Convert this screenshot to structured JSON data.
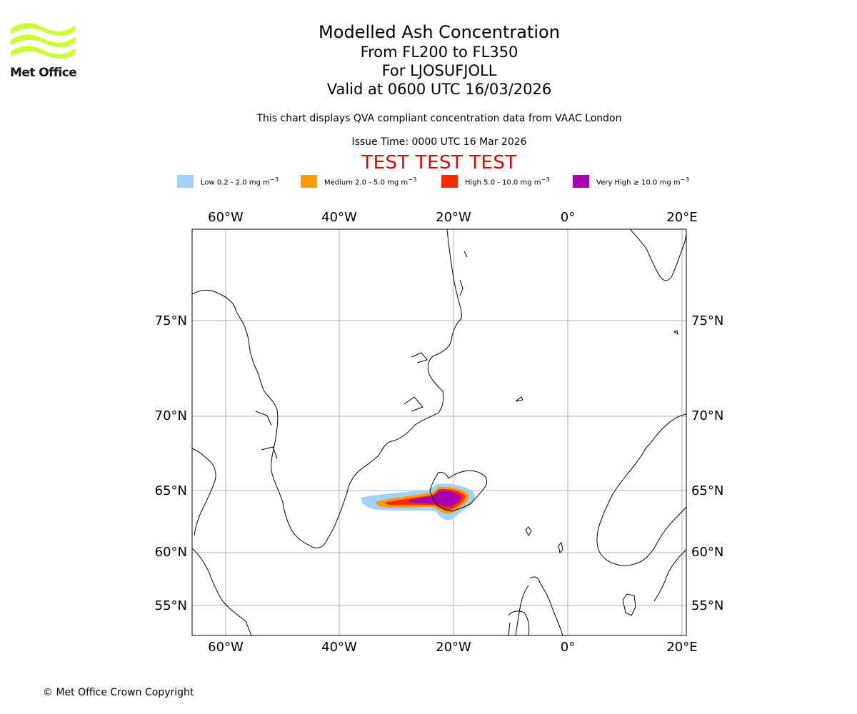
{
  "logo": {
    "name": "Met Office",
    "wave_color": "#ccff33"
  },
  "title": {
    "main": "Modelled Ash Concentration",
    "levels": "From FL200 to FL350",
    "volcano": "For LJOSUFJOLL",
    "valid": "Valid at 0600 UTC 16/03/2026"
  },
  "disclaimer": "This chart displays QVA compliant concentration data from VAAC London",
  "issue_time": "Issue Time: 0000 UTC 16 Mar 2026",
  "test_banner": "TEST TEST TEST",
  "legend": [
    {
      "label": "Low 0.2 - 2.0 mg m",
      "sup": "−3",
      "color": "#a0d2fa"
    },
    {
      "label": "Medium 2.0 - 5.0 mg m",
      "sup": "−3",
      "color": "#ff9a00"
    },
    {
      "label": "High 5.0 - 10.0 mg m",
      "sup": "−3",
      "color": "#ff2a00"
    },
    {
      "label": "Very High ≥ 10.0 mg m",
      "sup": "−3",
      "color": "#a800b0"
    }
  ],
  "map": {
    "lon_ticks": [
      "60°W",
      "40°W",
      "20°W",
      "0°",
      "20°E"
    ],
    "lat_ticks": [
      "75°N",
      "70°N",
      "65°N",
      "60°N",
      "55°N"
    ],
    "gridline_color": "#b0b0b0",
    "coast_color": "#000000"
  },
  "copyright": "© Met Office Crown Copyright"
}
